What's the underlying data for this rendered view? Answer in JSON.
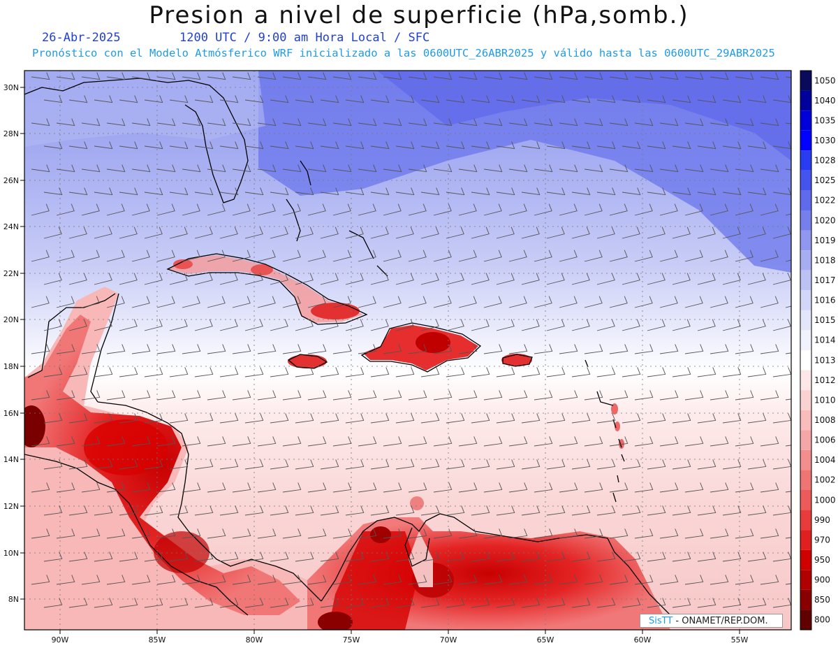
{
  "header": {
    "title": "Presion a nivel de superficie (hPa,somb.)",
    "date": "26-Abr-2025",
    "time_info": "1200 UTC / 9:00 am Hora Local / SFC",
    "forecast_info": "Pronóstico con el Modelo Atmósferico WRF inicializado a las 0600UTC_26ABR2025 y válido hasta las  0600UTC_29ABR2025"
  },
  "map": {
    "lat_labels": [
      "30N",
      "28N",
      "26N",
      "24N",
      "22N",
      "20N",
      "18N",
      "16N",
      "14N",
      "12N",
      "10N",
      "8N"
    ],
    "lon_labels": [
      "90W",
      "85W",
      "80W",
      "75W",
      "70W",
      "65W",
      "60W",
      "55W"
    ],
    "wind_barbs": "wind-barb-icon"
  },
  "colorbar": {
    "levels": [
      "1050",
      "1040",
      "1035",
      "1030",
      "1028",
      "1025",
      "1022",
      "1020",
      "1019",
      "1018",
      "1017",
      "1016",
      "1015",
      "1014",
      "1013",
      "1012",
      "1010",
      "1008",
      "1006",
      "1004",
      "1002",
      "1000",
      "990",
      "970",
      "950",
      "900",
      "850",
      "800"
    ],
    "colors": [
      "#0a0a5c",
      "#00009a",
      "#0000d8",
      "#0000ff",
      "#2a3cf2",
      "#4654ee",
      "#5f6bec",
      "#7580ec",
      "#8f98ee",
      "#a6aef1",
      "#bcc2f4",
      "#d2d6f7",
      "#e4e6fa",
      "#f1f2fc",
      "#ffffff",
      "#fde7e7",
      "#fbd2d2",
      "#f8bcbc",
      "#f5a6a6",
      "#f28e8e",
      "#ef7575",
      "#ec5a5a",
      "#e83c3c",
      "#e01f1f",
      "#d10000",
      "#b00000",
      "#8a0000",
      "#600000"
    ]
  },
  "credit": {
    "part1": "SisTT",
    "part2": " - ONAMET/REP.DOM."
  }
}
